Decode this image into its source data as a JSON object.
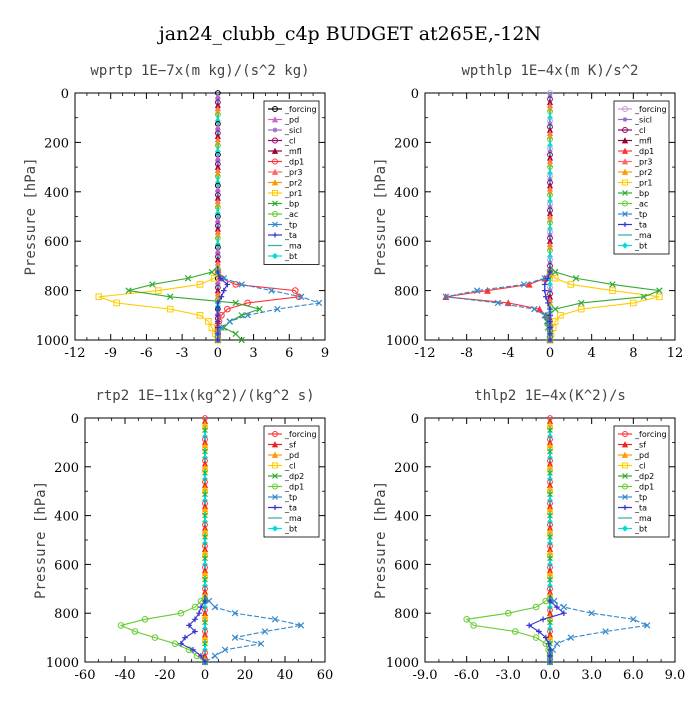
{
  "title": "jan24_clubb_c4p  BUDGET at265E,-12N",
  "chart_data": [
    {
      "type": "line",
      "title": "wprtp   1E−7x(m kg)/(s^2 kg)",
      "ylabel": "Pressure [hPa]",
      "xlabel": "",
      "xlim": [
        -12,
        9
      ],
      "xticks": [
        "-12",
        "-9",
        "-6",
        "-3",
        "0",
        "3",
        "6",
        "9"
      ],
      "ylim": [
        1000,
        0
      ],
      "yticks": [
        "0",
        "200",
        "400",
        "600",
        "800",
        "1000"
      ],
      "grid": false,
      "legend_position": "top-right",
      "y": [
        725,
        750,
        775,
        800,
        825,
        850,
        875,
        900,
        925,
        950,
        975,
        1000
      ],
      "series": [
        {
          "name": "_forcing",
          "color": "#000000",
          "marker": "circle",
          "values": [
            0,
            0,
            0,
            0,
            0,
            0,
            0,
            0,
            0,
            0,
            0,
            0
          ]
        },
        {
          "name": "_pd",
          "color": "#cc66cc",
          "marker": "triangle",
          "values": [
            0,
            0,
            0,
            0,
            0,
            0,
            0,
            0,
            0,
            0,
            0,
            0
          ]
        },
        {
          "name": "_sicl",
          "color": "#9966cc",
          "marker": "star",
          "values": [
            0,
            0,
            0,
            0,
            0,
            0,
            0,
            0,
            0,
            0,
            0,
            0
          ]
        },
        {
          "name": "_cl",
          "color": "#990066",
          "marker": "circle",
          "values": [
            0,
            0,
            0,
            0,
            0,
            0,
            0,
            0,
            0,
            0,
            0,
            0
          ]
        },
        {
          "name": "_mfl",
          "color": "#990033",
          "marker": "triangle",
          "values": [
            0,
            0,
            0,
            0,
            0,
            0,
            0,
            0,
            0,
            0,
            0,
            0
          ]
        },
        {
          "name": "_dp1",
          "color": "#ff3333",
          "marker": "circle",
          "values": [
            0,
            0.3,
            1.5,
            6.5,
            6.8,
            2.5,
            0.8,
            0.3,
            0.1,
            0,
            0,
            0
          ]
        },
        {
          "name": "_pr3",
          "color": "#ff6666",
          "marker": "triangle",
          "values": [
            0,
            0,
            0,
            0,
            0,
            0,
            0,
            0,
            0,
            0,
            0,
            0
          ]
        },
        {
          "name": "_pr2",
          "color": "#ff9900",
          "marker": "triangle",
          "values": [
            0,
            0,
            0,
            0,
            0,
            0,
            0,
            0,
            0,
            0,
            0,
            0
          ]
        },
        {
          "name": "_pr1",
          "color": "#ffcc00",
          "marker": "square",
          "values": [
            0,
            -0.3,
            -1.5,
            -5,
            -10,
            -8.5,
            -4,
            -1.5,
            -0.8,
            -0.5,
            -0.2,
            0
          ]
        },
        {
          "name": "_bp",
          "color": "#33aa33",
          "marker": "x",
          "values": [
            -0.5,
            -2.5,
            -5.5,
            -7.5,
            -4,
            1.5,
            3.5,
            2,
            1,
            0.5,
            1.5,
            2
          ]
        },
        {
          "name": "_ac",
          "color": "#66cc33",
          "marker": "circle",
          "values": [
            0,
            0,
            0,
            0,
            0,
            0,
            0,
            0,
            0,
            0,
            0,
            0
          ]
        },
        {
          "name": "_tp",
          "color": "#3388cc",
          "marker": "x",
          "values": [
            0,
            0.5,
            2,
            4.5,
            7,
            8.5,
            5,
            2.5,
            1,
            0.3,
            0,
            0
          ]
        },
        {
          "name": "_ta",
          "color": "#3333cc",
          "marker": "plus",
          "values": [
            0,
            0.2,
            0.8,
            0.5,
            0.3,
            0,
            0,
            0,
            0,
            0,
            0,
            0
          ]
        },
        {
          "name": "_ma",
          "color": "#33aaaa",
          "marker": "none",
          "values": [
            0,
            0,
            0,
            0,
            0,
            0,
            0,
            0,
            0,
            0,
            0,
            0
          ]
        },
        {
          "name": "_bt",
          "color": "#00dddd",
          "marker": "diamond",
          "values": [
            0,
            0,
            0,
            0,
            0,
            0,
            0,
            0,
            0,
            0,
            0,
            0
          ]
        }
      ]
    },
    {
      "type": "line",
      "title": "wpthlp   1E−4x(m K)/s^2",
      "ylabel": "Pressure [hPa]",
      "xlabel": "",
      "xlim": [
        -12,
        12
      ],
      "xticks": [
        "-12",
        "-8",
        "-4",
        "0",
        "4",
        "8",
        "12"
      ],
      "ylim": [
        1000,
        0
      ],
      "yticks": [
        "0",
        "200",
        "400",
        "600",
        "800",
        "1000"
      ],
      "grid": false,
      "legend_position": "top-right",
      "y": [
        725,
        750,
        775,
        800,
        825,
        850,
        875,
        900,
        925,
        950,
        975,
        1000
      ],
      "series": [
        {
          "name": "_forcing",
          "color": "#cc99cc",
          "marker": "circle",
          "values": [
            0,
            0,
            0,
            0,
            0,
            0,
            0,
            0,
            0,
            0,
            0,
            0
          ]
        },
        {
          "name": "_sicl",
          "color": "#9966cc",
          "marker": "star",
          "values": [
            0,
            0,
            0,
            0,
            0,
            0,
            0,
            0,
            0,
            0,
            0,
            0
          ]
        },
        {
          "name": "_cl",
          "color": "#990066",
          "marker": "circle",
          "values": [
            0,
            0,
            0,
            0,
            0,
            0,
            0,
            0,
            0,
            0,
            0,
            0
          ]
        },
        {
          "name": "_mfl",
          "color": "#990033",
          "marker": "triangle",
          "values": [
            0,
            0,
            0,
            0,
            0,
            0,
            0,
            0,
            0,
            0,
            0,
            0
          ]
        },
        {
          "name": "_dp1",
          "color": "#ff3333",
          "marker": "triangle",
          "values": [
            0,
            -0.5,
            -2,
            -6,
            -10,
            -4,
            -1,
            -0.4,
            -0.1,
            0,
            0,
            0
          ]
        },
        {
          "name": "_pr3",
          "color": "#ff6666",
          "marker": "triangle",
          "values": [
            0,
            0,
            0,
            0,
            0,
            0,
            0,
            0,
            0,
            0,
            0,
            0
          ]
        },
        {
          "name": "_pr2",
          "color": "#ff9900",
          "marker": "triangle",
          "values": [
            0,
            0,
            0,
            0,
            0,
            0,
            0,
            0,
            0,
            0,
            0,
            0
          ]
        },
        {
          "name": "_pr1",
          "color": "#ffcc00",
          "marker": "square",
          "values": [
            0,
            0.5,
            2,
            6,
            10.5,
            8,
            3,
            1,
            0.5,
            0.3,
            0.1,
            0
          ]
        },
        {
          "name": "_bp",
          "color": "#33aa33",
          "marker": "x",
          "values": [
            0.5,
            2.5,
            6,
            10.5,
            9,
            3,
            0.5,
            -0.2,
            -0.3,
            -0.2,
            0,
            0
          ]
        },
        {
          "name": "_ac",
          "color": "#66cc33",
          "marker": "circle",
          "values": [
            0,
            0,
            0,
            0,
            0,
            0,
            0,
            0,
            0,
            0,
            0,
            0
          ]
        },
        {
          "name": "_tp",
          "color": "#3388cc",
          "marker": "x",
          "values": [
            0,
            -0.5,
            -2.5,
            -7,
            -10,
            -5,
            -1.5,
            -0.5,
            -0.2,
            0,
            0,
            0
          ]
        },
        {
          "name": "_ta",
          "color": "#3333cc",
          "marker": "plus",
          "values": [
            0,
            -0.2,
            -0.5,
            -0.5,
            -0.4,
            -0.2,
            0,
            0,
            0,
            0,
            0,
            0
          ]
        },
        {
          "name": "_ma",
          "color": "#33aaaa",
          "marker": "none",
          "values": [
            0,
            0,
            0,
            0,
            0,
            0,
            0,
            0,
            0,
            0,
            0,
            0
          ]
        },
        {
          "name": "_bt",
          "color": "#00dddd",
          "marker": "diamond",
          "values": [
            0,
            0,
            0,
            0,
            0,
            0,
            0,
            0,
            0,
            0,
            0,
            0
          ]
        }
      ]
    },
    {
      "type": "line",
      "title": "rtp2   1E−11x(kg^2)/(kg^2 s)",
      "ylabel": "Pressure [hPa]",
      "xlabel": "",
      "xlim": [
        -60,
        60
      ],
      "xticks": [
        "-60",
        "-40",
        "-20",
        "0",
        "20",
        "40",
        "60"
      ],
      "ylim": [
        1000,
        0
      ],
      "yticks": [
        "0",
        "200",
        "400",
        "600",
        "800",
        "1000"
      ],
      "grid": false,
      "legend_position": "top-right",
      "y": [
        750,
        775,
        800,
        825,
        850,
        875,
        900,
        925,
        950,
        975,
        1000
      ],
      "series": [
        {
          "name": "_forcing",
          "color": "#ff3333",
          "marker": "circle",
          "values": [
            0,
            0,
            0,
            0,
            0,
            0,
            0,
            0,
            0,
            0,
            0
          ]
        },
        {
          "name": "_sf",
          "color": "#ee2222",
          "marker": "triangle",
          "values": [
            0,
            0,
            0,
            0,
            0,
            0,
            0,
            0,
            0,
            0,
            0
          ]
        },
        {
          "name": "_pd",
          "color": "#ff9900",
          "marker": "triangle",
          "values": [
            0,
            0,
            0,
            0,
            0,
            0,
            0,
            0,
            0,
            0,
            0
          ]
        },
        {
          "name": "_cl",
          "color": "#ffcc00",
          "marker": "square",
          "values": [
            0,
            0,
            0,
            0,
            0,
            0,
            0,
            0,
            0,
            0,
            0
          ]
        },
        {
          "name": "_dp2",
          "color": "#33aa33",
          "marker": "x",
          "values": [
            0,
            0,
            0,
            0,
            0,
            0,
            0,
            0,
            0,
            0,
            0
          ]
        },
        {
          "name": "_dp1",
          "color": "#66cc33",
          "marker": "circle",
          "values": [
            -2,
            -5,
            -12,
            -30,
            -42,
            -35,
            -25,
            -15,
            -8,
            -4,
            0
          ]
        },
        {
          "name": "_tp",
          "color": "#3388cc",
          "marker": "x",
          "values": [
            2,
            5,
            15,
            35,
            48,
            30,
            15,
            28,
            10,
            5,
            0
          ]
        },
        {
          "name": "_ta",
          "color": "#3333cc",
          "marker": "plus",
          "values": [
            0,
            -2,
            -3,
            -5,
            -8,
            -5,
            -10,
            -12,
            -6,
            -2,
            0
          ]
        },
        {
          "name": "_ma",
          "color": "#33aaaa",
          "marker": "none",
          "values": [
            0,
            0,
            0,
            0,
            0,
            0,
            0,
            0,
            0,
            0,
            0
          ]
        },
        {
          "name": "_bt",
          "color": "#00dddd",
          "marker": "diamond",
          "values": [
            0,
            0,
            0,
            0,
            0,
            0,
            0,
            0,
            0,
            0,
            0
          ]
        }
      ]
    },
    {
      "type": "line",
      "title": "thlp2   1E−4x(K^2)/s",
      "ylabel": "Pressure [hPa]",
      "xlabel": "",
      "xlim": [
        -9,
        9
      ],
      "xticks": [
        "-9.0",
        "-6.0",
        "-3.0",
        "0.0",
        "3.0",
        "6.0",
        "9.0"
      ],
      "ylim": [
        1000,
        0
      ],
      "yticks": [
        "0",
        "200",
        "400",
        "600",
        "800",
        "1000"
      ],
      "grid": false,
      "legend_position": "top-right",
      "y": [
        750,
        775,
        800,
        825,
        850,
        875,
        900,
        925,
        950,
        975,
        1000
      ],
      "series": [
        {
          "name": "_forcing",
          "color": "#ff3333",
          "marker": "circle",
          "values": [
            0,
            0,
            0,
            0,
            0,
            0,
            0,
            0,
            0,
            0,
            0
          ]
        },
        {
          "name": "_sf",
          "color": "#ee2222",
          "marker": "triangle",
          "values": [
            0,
            0,
            0,
            0,
            0,
            0,
            0,
            0,
            0,
            0,
            0
          ]
        },
        {
          "name": "_pd",
          "color": "#ff9900",
          "marker": "triangle",
          "values": [
            0,
            0,
            0,
            0,
            0,
            0,
            0,
            0,
            0,
            0,
            0
          ]
        },
        {
          "name": "_cl",
          "color": "#ffcc00",
          "marker": "square",
          "values": [
            0,
            0,
            0,
            0,
            0,
            0,
            0,
            0,
            0,
            0,
            0
          ]
        },
        {
          "name": "_dp2",
          "color": "#33aa33",
          "marker": "x",
          "values": [
            0,
            0,
            0,
            0,
            0,
            0,
            0,
            0,
            0,
            0,
            0
          ]
        },
        {
          "name": "_dp1",
          "color": "#66cc33",
          "marker": "circle",
          "values": [
            -0.3,
            -1,
            -3,
            -6,
            -5.5,
            -2.5,
            -1,
            -0.3,
            -0.1,
            0,
            0
          ]
        },
        {
          "name": "_tp",
          "color": "#3388cc",
          "marker": "x",
          "values": [
            0.3,
            1,
            3,
            6,
            7,
            4,
            1.5,
            0.5,
            0.2,
            0,
            0
          ]
        },
        {
          "name": "_ta",
          "color": "#3333cc",
          "marker": "plus",
          "values": [
            0,
            0.5,
            1,
            -0.5,
            -1.5,
            -0.8,
            -0.3,
            -0.1,
            0,
            0,
            0
          ]
        },
        {
          "name": "_ma",
          "color": "#33aaaa",
          "marker": "none",
          "values": [
            0,
            0,
            0,
            0,
            0,
            0,
            0,
            0,
            0,
            0,
            0
          ]
        },
        {
          "name": "_bt",
          "color": "#00dddd",
          "marker": "diamond",
          "values": [
            0,
            0,
            0,
            0,
            0,
            0,
            0,
            0,
            0,
            0,
            0
          ]
        }
      ]
    }
  ]
}
